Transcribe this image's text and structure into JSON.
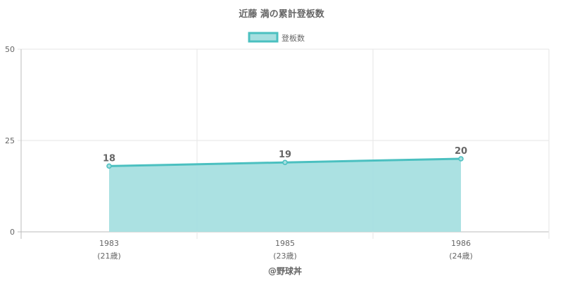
{
  "chart_data": {
    "type": "line",
    "title": "近藤 満の累計登板数",
    "categories": [
      "1983",
      "1985",
      "1986"
    ],
    "category_sublabels": [
      "(21歳)",
      "(23歳)",
      "(24歳)"
    ],
    "series": [
      {
        "name": "登板数",
        "values": [
          18,
          19,
          20
        ],
        "fill": true
      }
    ],
    "ylim": [
      0,
      50
    ],
    "yticks": [
      0,
      25,
      50
    ],
    "grid": true,
    "legend_position": "top",
    "colors": {
      "line": "#4bc0c0",
      "fill": "#a6dfe0",
      "grid": "#e6e6e6",
      "axis": "#bbbbbb"
    }
  },
  "footer": {
    "credit": "@野球丼"
  }
}
